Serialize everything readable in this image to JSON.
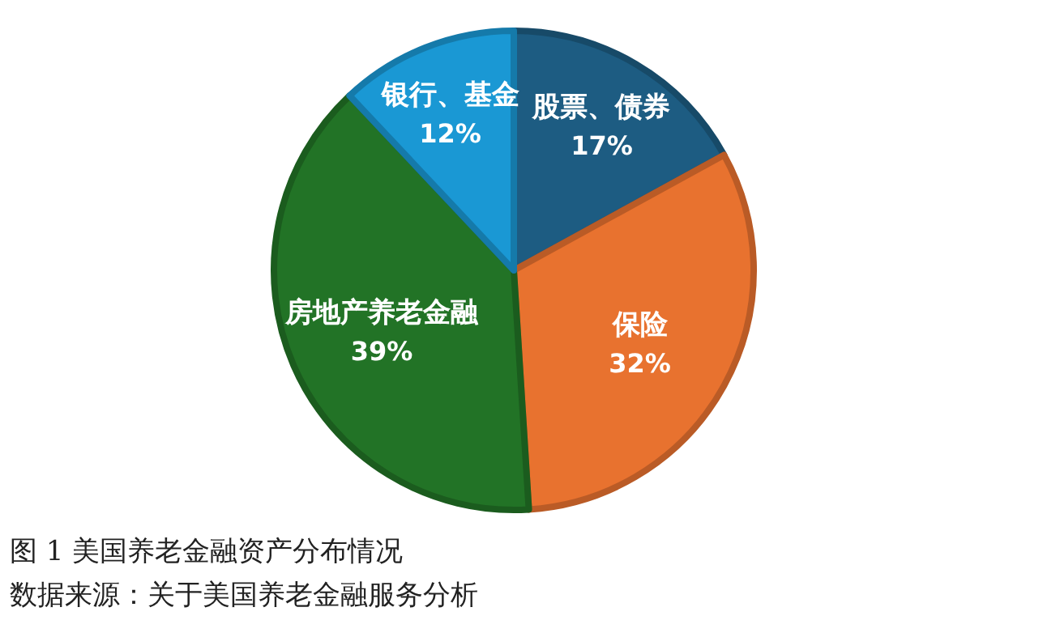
{
  "chart_data": {
    "type": "pie",
    "categories": [
      "股票、债券",
      "保险",
      "房地产养老金融",
      "银行、基金"
    ],
    "values": [
      17,
      32,
      39,
      12
    ],
    "value_labels": [
      "17%",
      "32%",
      "39%",
      "12%"
    ],
    "colors": [
      "#1d5c82",
      "#e8722f",
      "#227326",
      "#1a98d4"
    ],
    "annotations": [
      "图 1 美国养老金融资产分布情况",
      "数据来源：关于美国养老金融服务分析"
    ]
  }
}
